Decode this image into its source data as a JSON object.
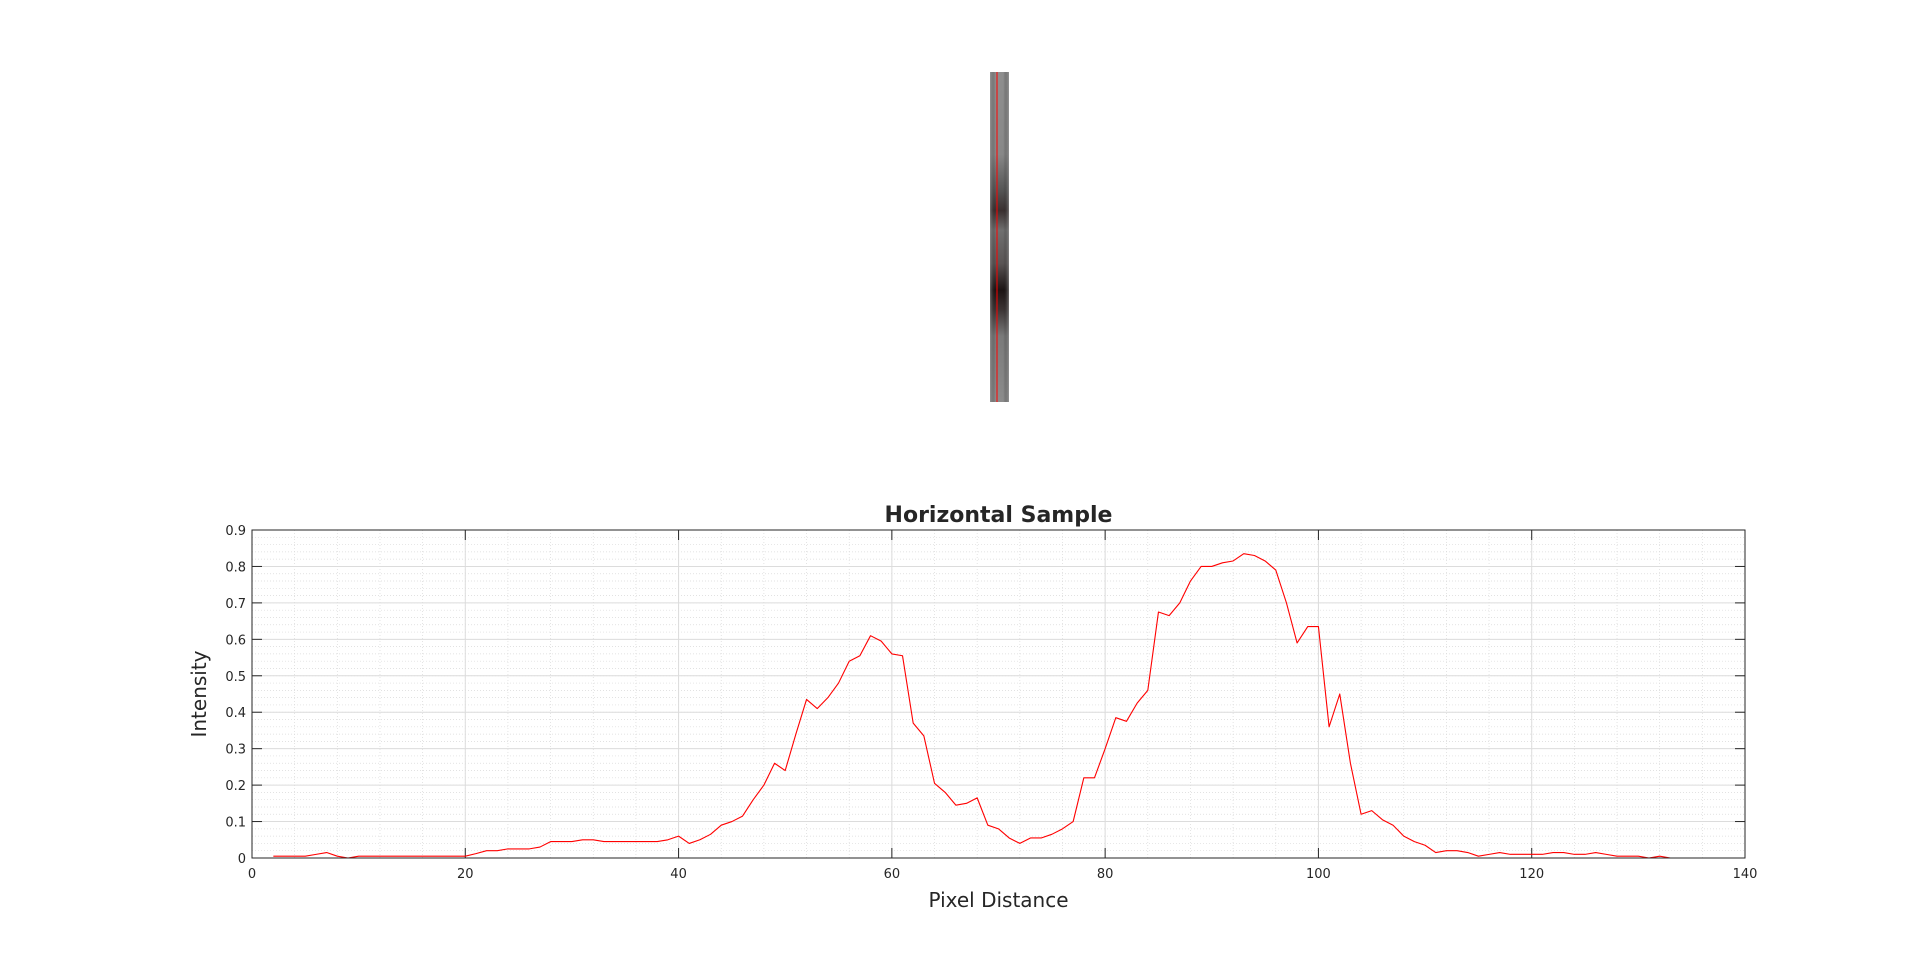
{
  "chart_data": {
    "type": "line",
    "title": "Horizontal Sample",
    "xlabel": "Pixel Distance",
    "ylabel": "Intensity",
    "xlim": [
      0,
      140
    ],
    "ylim": [
      0,
      0.9
    ],
    "xticks": [
      "0",
      "20",
      "40",
      "60",
      "80",
      "100",
      "120",
      "140"
    ],
    "yticks": [
      "0",
      "0.1",
      "0.2",
      "0.3",
      "0.4",
      "0.5",
      "0.6",
      "0.7",
      "0.8",
      "0.9"
    ],
    "grid": true,
    "minor_grid": true,
    "series": [
      {
        "color": "#ff0000",
        "x": [
          2,
          3,
          4,
          5,
          6,
          7,
          8,
          9,
          10,
          11,
          12,
          13,
          14,
          15,
          16,
          17,
          18,
          19,
          20,
          21,
          22,
          23,
          24,
          25,
          26,
          27,
          28,
          29,
          30,
          31,
          32,
          33,
          34,
          35,
          36,
          37,
          38,
          39,
          40,
          41,
          42,
          43,
          44,
          45,
          46,
          47,
          48,
          49,
          50,
          51,
          52,
          53,
          54,
          55,
          56,
          57,
          58,
          59,
          60,
          61,
          62,
          63,
          64,
          65,
          66,
          67,
          68,
          69,
          70,
          71,
          72,
          73,
          74,
          75,
          76,
          77,
          78,
          79,
          80,
          81,
          82,
          83,
          84,
          85,
          86,
          87,
          88,
          89,
          90,
          91,
          92,
          93,
          94,
          95,
          96,
          97,
          98,
          99,
          100,
          101,
          102,
          103,
          104,
          105,
          106,
          107,
          108,
          109,
          110,
          111,
          112,
          113,
          114,
          115,
          116,
          117,
          118,
          119,
          120,
          121,
          122,
          123,
          124,
          125,
          126,
          127,
          128,
          129,
          130,
          131,
          132,
          133
        ],
        "y": [
          0.005,
          0.005,
          0.005,
          0.005,
          0.01,
          0.015,
          0.005,
          0.0,
          0.005,
          0.005,
          0.005,
          0.005,
          0.005,
          0.005,
          0.005,
          0.005,
          0.005,
          0.005,
          0.005,
          0.012,
          0.02,
          0.02,
          0.025,
          0.025,
          0.025,
          0.03,
          0.045,
          0.045,
          0.045,
          0.05,
          0.05,
          0.045,
          0.045,
          0.045,
          0.045,
          0.045,
          0.045,
          0.05,
          0.06,
          0.04,
          0.05,
          0.065,
          0.09,
          0.1,
          0.115,
          0.16,
          0.2,
          0.26,
          0.24,
          0.34,
          0.435,
          0.41,
          0.44,
          0.48,
          0.54,
          0.555,
          0.61,
          0.595,
          0.56,
          0.555,
          0.37,
          0.335,
          0.205,
          0.18,
          0.145,
          0.15,
          0.165,
          0.09,
          0.08,
          0.055,
          0.04,
          0.055,
          0.055,
          0.065,
          0.08,
          0.1,
          0.22,
          0.22,
          0.3,
          0.385,
          0.375,
          0.425,
          0.46,
          0.675,
          0.665,
          0.7,
          0.76,
          0.8,
          0.8,
          0.81,
          0.815,
          0.835,
          0.83,
          0.815,
          0.79,
          0.7,
          0.59,
          0.635,
          0.635,
          0.36,
          0.45,
          0.26,
          0.12,
          0.13,
          0.105,
          0.09,
          0.06,
          0.045,
          0.035,
          0.015,
          0.02,
          0.02,
          0.015,
          0.005,
          0.01,
          0.015,
          0.01,
          0.01,
          0.01,
          0.01,
          0.015,
          0.015,
          0.01,
          0.01,
          0.015,
          0.01,
          0.005,
          0.005,
          0.005,
          0.0,
          0.005,
          0.0
        ]
      }
    ]
  },
  "image": {
    "description": "Grayscale vertical image strip with red sampling line",
    "colors": {
      "strip": "#8c8c8c",
      "line": "#ff0000"
    }
  }
}
